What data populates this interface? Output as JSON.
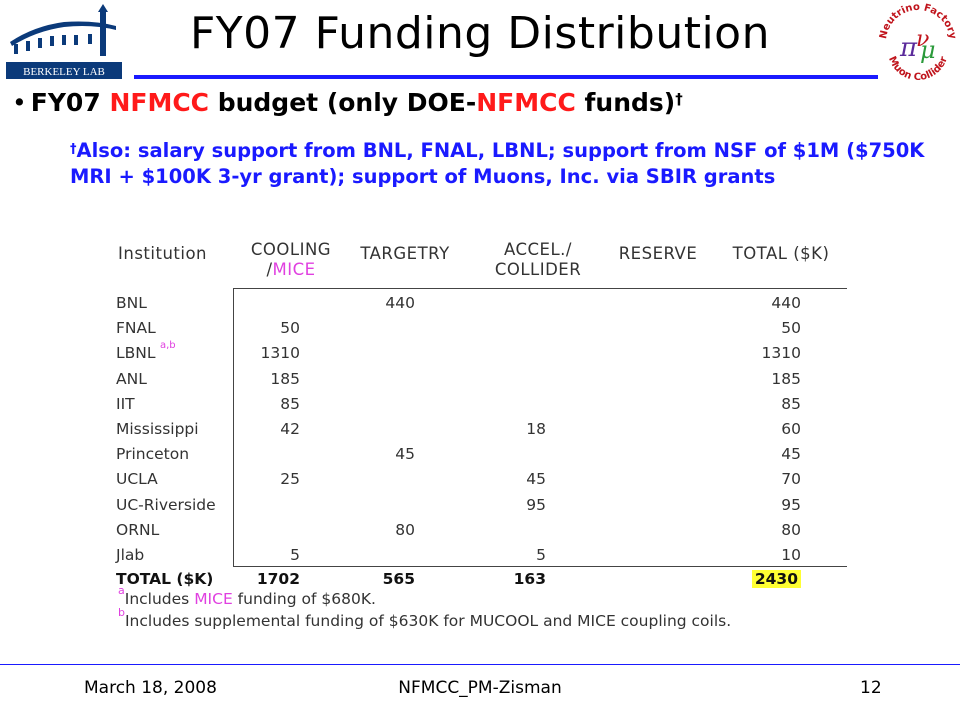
{
  "logos": {
    "left": "Berkeley Lab logo",
    "left_text": "BERKELEY LAB",
    "right": "Neutrino Factory Muon Collider logo",
    "right_text_top": "Neutrino Factory",
    "right_text_bottom": "Muon Collider"
  },
  "title": "FY07 Funding Distribution",
  "bullet": {
    "p1": "FY07 ",
    "p2": "NFMCC",
    "p3": " budget (only DOE-",
    "p4": "NFMCC",
    "p5": " funds)",
    "mark": "†"
  },
  "note": {
    "mark": "†",
    "text": "Also: salary support from BNL, FNAL, LBNL; support from NSF of $1M ($750K MRI + $100K 3-yr grant); support of Muons, Inc. via SBIR grants"
  },
  "table": {
    "headers": {
      "institution": "Institution",
      "cooling_1": "COOLING",
      "cooling_2a": "/",
      "cooling_2b": "MICE",
      "targetry": "TARGETRY",
      "accel_1": "ACCEL./",
      "accel_2": "COLLIDER",
      "reserve": "RESERVE",
      "total": "TOTAL ($K)"
    },
    "rows": [
      {
        "name": "BNL",
        "sup": "",
        "cooling": "",
        "targetry": "440",
        "accel": "",
        "total": "440"
      },
      {
        "name": "FNAL",
        "sup": "",
        "cooling": "50",
        "targetry": "",
        "accel": "",
        "total": "50"
      },
      {
        "name": "LBNL",
        "sup": "a,b",
        "cooling": "1310",
        "targetry": "",
        "accel": "",
        "total": "1310"
      },
      {
        "name": "ANL",
        "sup": "",
        "cooling": "185",
        "targetry": "",
        "accel": "",
        "total": "185"
      },
      {
        "name": "IIT",
        "sup": "",
        "cooling": "85",
        "targetry": "",
        "accel": "",
        "total": "85"
      },
      {
        "name": "Mississippi",
        "sup": "",
        "cooling": "42",
        "targetry": "",
        "accel": "18",
        "total": "60"
      },
      {
        "name": "Princeton",
        "sup": "",
        "cooling": "",
        "targetry": "45",
        "accel": "",
        "total": "45"
      },
      {
        "name": "UCLA",
        "sup": "",
        "cooling": "25",
        "targetry": "",
        "accel": "45",
        "total": "70"
      },
      {
        "name": "UC-Riverside",
        "sup": "",
        "cooling": "",
        "targetry": "",
        "accel": "95",
        "total": "95"
      },
      {
        "name": "ORNL",
        "sup": "",
        "cooling": "",
        "targetry": "80",
        "accel": "",
        "total": "80"
      },
      {
        "name": "Jlab",
        "sup": "",
        "cooling": "5",
        "targetry": "",
        "accel": "5",
        "total": "10"
      }
    ],
    "total_row": {
      "name": "TOTAL ($K)",
      "cooling": "1702",
      "targetry": "565",
      "accel": "163",
      "total": "2430"
    },
    "highlight_color": "#ffff33"
  },
  "footnotes": {
    "a_mark": "a",
    "a_pre": "Includes ",
    "a_mice": "MICE",
    "a_post": " funding of $680K.",
    "b_mark": "b",
    "b_text": "Includes supplemental funding of $630K for MUCOOL and MICE coupling coils."
  },
  "footer": {
    "date": "March 18, 2008",
    "center": "NFMCC_PM-Zisman",
    "page": "12"
  },
  "colors": {
    "accent_blue": "#1a1aff",
    "highlight_red": "#ff1a1a",
    "mice_magenta": "#e040e0"
  }
}
